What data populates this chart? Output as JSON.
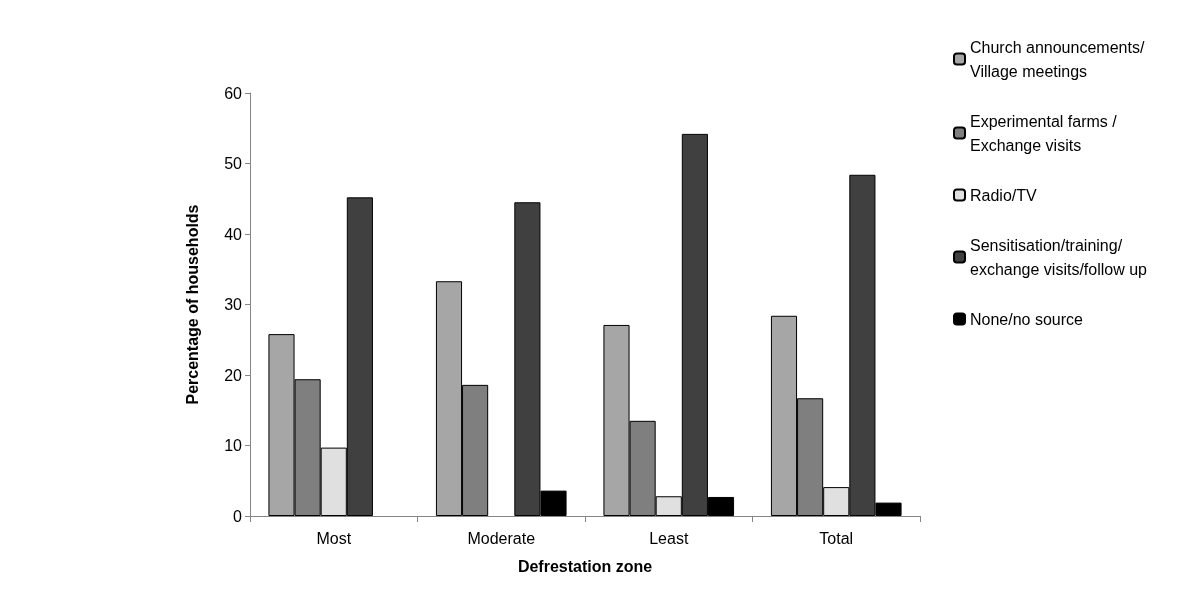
{
  "chart_data": {
    "type": "bar",
    "xlabel": "Defrestation zone",
    "ylabel": "Percentage of households",
    "categories": [
      "Most",
      "Moderate",
      "Least",
      "Total"
    ],
    "series": [
      {
        "name": "Church announcements/Village meetings",
        "color": "#a6a6a6",
        "values": [
          25.8,
          33.3,
          27.1,
          28.4
        ]
      },
      {
        "name": "Experimental farms /Exchange visits",
        "color": "#7f7f7f",
        "values": [
          19.4,
          18.6,
          13.5,
          16.7
        ]
      },
      {
        "name": "Radio/TV",
        "color": "#e0e0e0",
        "values": [
          9.7,
          null,
          2.8,
          4.1
        ]
      },
      {
        "name": "Sensitisation/training/exchange visits/follow up",
        "color": "#404040",
        "values": [
          45.2,
          44.5,
          54.2,
          48.4
        ]
      },
      {
        "name": "None/no source",
        "color": "#000000",
        "values": [
          null,
          3.6,
          2.7,
          1.9
        ]
      }
    ],
    "ylim": [
      0,
      60
    ],
    "yticks": [
      0,
      10,
      20,
      30,
      40,
      50,
      60
    ],
    "grid": false,
    "legend": "right"
  }
}
